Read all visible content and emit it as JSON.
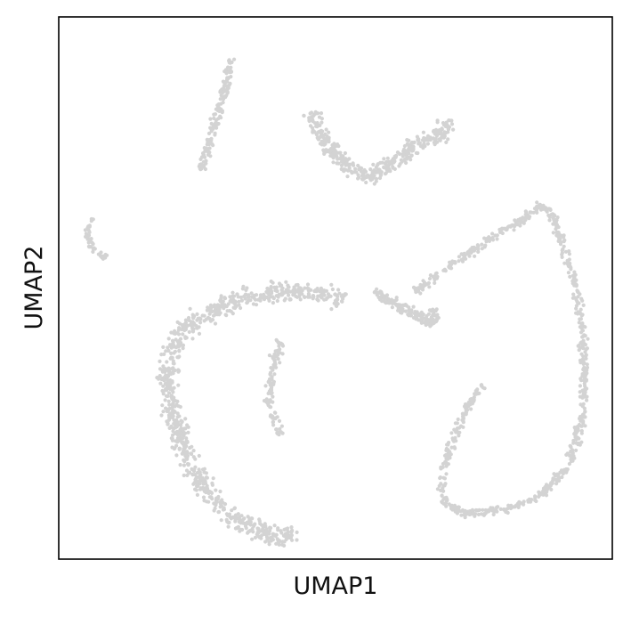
{
  "chart_data": {
    "type": "scatter",
    "title": "",
    "xlabel": "UMAP1",
    "ylabel": "UMAP2",
    "xlim": [
      0,
      100
    ],
    "ylim": [
      0,
      100
    ],
    "x_ticks": [],
    "y_ticks": [],
    "grid": false,
    "legend": "none",
    "point_color": "#d3d3d3",
    "clusters": [
      {
        "shape": "path",
        "path": [
          [
            31.2,
            92.6
          ],
          [
            29.7,
            85.3
          ],
          [
            27.9,
            79.1
          ],
          [
            25.6,
            71.8
          ]
        ],
        "width": 1.4,
        "count": 140
      },
      {
        "shape": "path",
        "path": [
          [
            6.0,
            63.0
          ],
          [
            5.2,
            59.5
          ],
          [
            6.5,
            56.6
          ],
          [
            8.6,
            55.7
          ]
        ],
        "width": 0.9,
        "count": 45
      },
      {
        "shape": "path",
        "path": [
          [
            46.0,
            82.5
          ],
          [
            46.8,
            78.5
          ],
          [
            51.5,
            73.0
          ],
          [
            56.0,
            70.2
          ],
          [
            60.5,
            73.3
          ],
          [
            65.0,
            77.0
          ],
          [
            70.0,
            78.5
          ],
          [
            69.5,
            81.0
          ]
        ],
        "width": 2.2,
        "count": 420
      },
      {
        "shape": "path",
        "path": [
          [
            51.5,
            47.5
          ],
          [
            47.0,
            49.0
          ],
          [
            41.0,
            49.3
          ],
          [
            33.0,
            48.0
          ],
          [
            26.0,
            45.0
          ],
          [
            21.0,
            40.5
          ],
          [
            19.5,
            34.0
          ],
          [
            20.5,
            26.0
          ],
          [
            23.5,
            18.0
          ],
          [
            28.0,
            11.0
          ],
          [
            32.0,
            7.0
          ],
          [
            41.0,
            3.5
          ],
          [
            42.5,
            5.5
          ]
        ],
        "width": 2.6,
        "count": 900
      },
      {
        "shape": "path",
        "path": [
          [
            40.0,
            40.5
          ],
          [
            38.5,
            34.5
          ],
          [
            38.0,
            29.0
          ],
          [
            40.0,
            23.0
          ]
        ],
        "width": 1.2,
        "count": 110
      },
      {
        "shape": "path",
        "path": [
          [
            57.0,
            49.3
          ],
          [
            61.0,
            47.0
          ],
          [
            65.0,
            44.5
          ],
          [
            68.0,
            43.5
          ],
          [
            67.5,
            46.0
          ]
        ],
        "width": 1.5,
        "count": 160
      },
      {
        "shape": "path",
        "path": [
          [
            64.0,
            49.0
          ],
          [
            70.0,
            53.5
          ],
          [
            78.0,
            59.0
          ],
          [
            84.0,
            62.8
          ],
          [
            87.0,
            65.6
          ],
          [
            89.5,
            63.0
          ],
          [
            90.5,
            59.2
          ],
          [
            93.0,
            52.0
          ],
          [
            94.5,
            44.0
          ],
          [
            95.0,
            34.0
          ],
          [
            94.5,
            25.0
          ],
          [
            92.0,
            17.0
          ],
          [
            87.0,
            11.5
          ],
          [
            80.5,
            9.2
          ],
          [
            74.0,
            8.3
          ],
          [
            70.0,
            10.0
          ],
          [
            69.0,
            14.0
          ],
          [
            70.2,
            19.0
          ],
          [
            72.5,
            25.0
          ],
          [
            75.0,
            30.0
          ],
          [
            76.5,
            32.0
          ]
        ],
        "width": 1.1,
        "count": 780
      }
    ]
  }
}
